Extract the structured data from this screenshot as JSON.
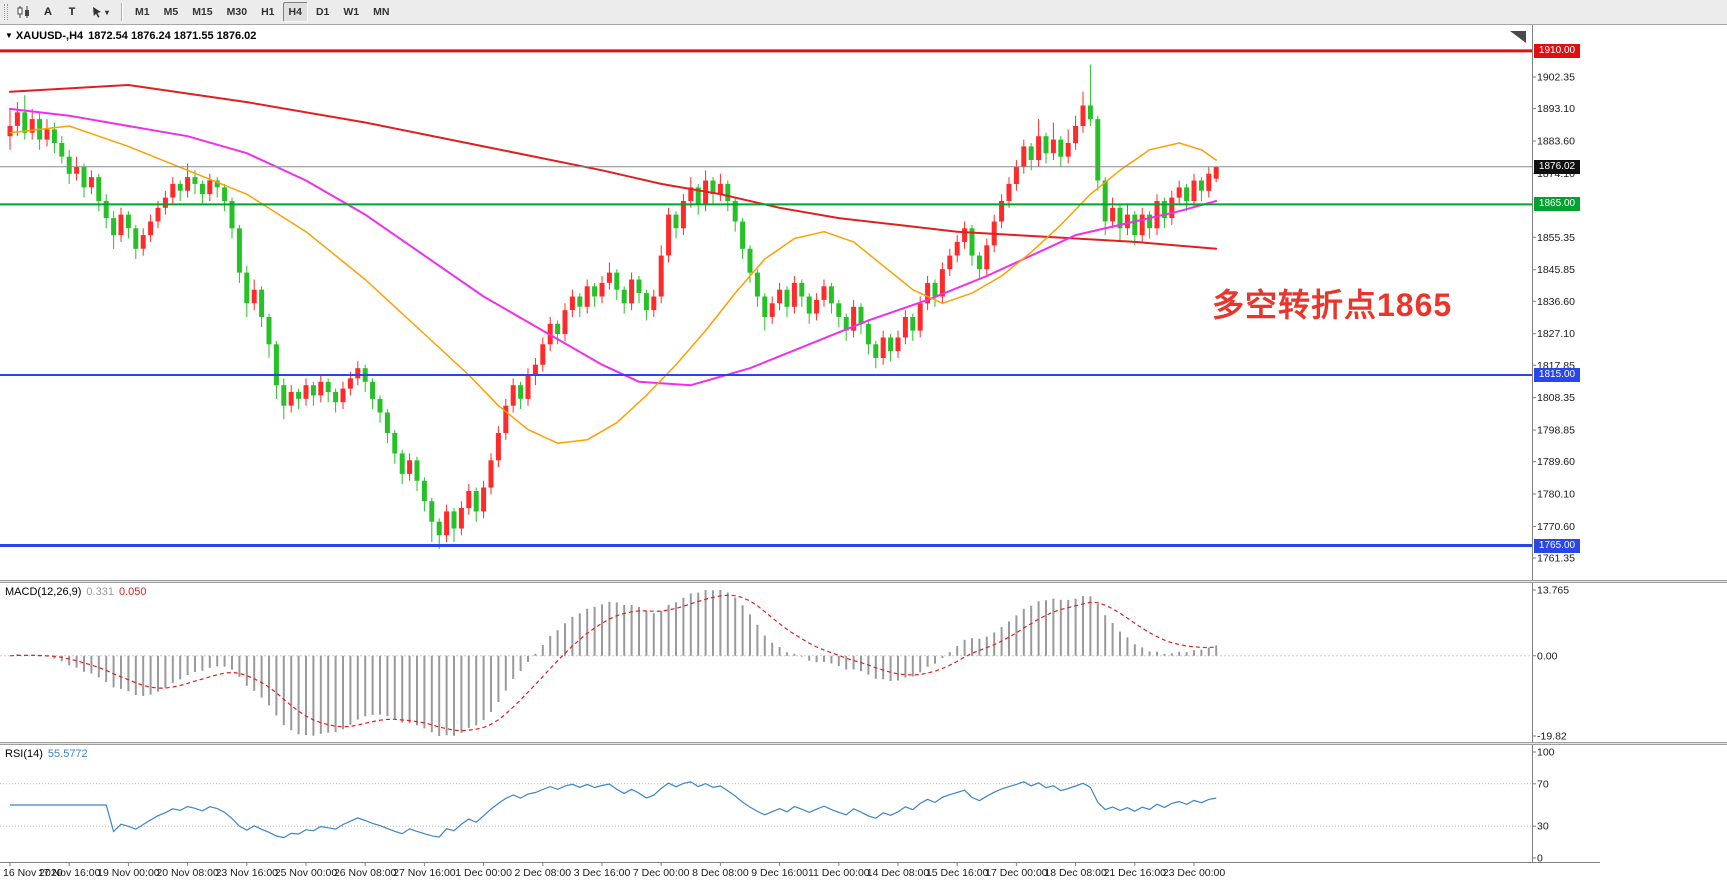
{
  "toolbar": {
    "tool_a": "A",
    "tool_t": "T",
    "timeframes": [
      "M1",
      "M5",
      "M15",
      "M30",
      "H1",
      "H4",
      "D1",
      "W1",
      "MN"
    ],
    "active_timeframe": "H4"
  },
  "chart": {
    "title_symbol": "XAUUSD-,H4",
    "title_ohlc": "1872.54 1876.24 1871.55 1876.02",
    "annotation": "多空转折点1865",
    "annotation_color": "#e8362c"
  },
  "macd": {
    "name": "MACD(12,26,9)",
    "value_main": "0.331",
    "value_signal": "0.050",
    "axis": [
      "13.765",
      "0.00",
      "-19.82"
    ],
    "hist_color": "#9a9a9a",
    "signal_color": "#e02020"
  },
  "rsi": {
    "name": "RSI(14)",
    "value": "55.5772",
    "axis": [
      "100",
      "70",
      "30",
      "0"
    ],
    "color": "#3d85c6"
  },
  "chart_data": {
    "type": "candlestick",
    "symbol": "XAUUSD",
    "period": "H4",
    "bull_color": "#ff2a2a",
    "bear_color": "#26c126",
    "price_ticks": [
      "1902.35",
      "1893.10",
      "1883.60",
      "1874.10",
      "1855.35",
      "1845.85",
      "1836.60",
      "1827.10",
      "1817.85",
      "1808.35",
      "1798.85",
      "1789.60",
      "1780.10",
      "1770.60",
      "1761.35"
    ],
    "current_price": {
      "label": "1876.02",
      "value": 1876.02,
      "box_color": "#101010"
    },
    "hlines": [
      {
        "value": 1910.0,
        "label": "1910.00",
        "color": "#e10f0f",
        "width": 3
      },
      {
        "value": 1865.0,
        "label": "1865.00",
        "color": "#00a32e",
        "width": 2
      },
      {
        "value": 1815.0,
        "label": "1815.00",
        "color": "#2946e8",
        "width": 2
      },
      {
        "value": 1765.0,
        "label": "1765.00",
        "color": "#2946e8",
        "width": 3
      }
    ],
    "ma_lines": [
      {
        "name": "ma-slow-red",
        "color": "#e02020",
        "width": 2,
        "points": [
          [
            0,
            1898
          ],
          [
            16,
            1900
          ],
          [
            32,
            1895
          ],
          [
            48,
            1889
          ],
          [
            64,
            1882
          ],
          [
            80,
            1875
          ],
          [
            88,
            1871
          ],
          [
            96,
            1868
          ],
          [
            104,
            1864
          ],
          [
            112,
            1861
          ],
          [
            120,
            1859
          ],
          [
            128,
            1857
          ],
          [
            136,
            1856
          ],
          [
            144,
            1855
          ],
          [
            152,
            1854
          ],
          [
            163,
            1852
          ]
        ]
      },
      {
        "name": "ma-mid-magenta",
        "color": "#ee30ee",
        "width": 2,
        "points": [
          [
            0,
            1893
          ],
          [
            8,
            1891
          ],
          [
            16,
            1888
          ],
          [
            24,
            1885
          ],
          [
            32,
            1880
          ],
          [
            40,
            1872
          ],
          [
            48,
            1862
          ],
          [
            56,
            1850
          ],
          [
            64,
            1838
          ],
          [
            72,
            1828
          ],
          [
            80,
            1818
          ],
          [
            85,
            1813
          ],
          [
            92,
            1812
          ],
          [
            100,
            1817
          ],
          [
            108,
            1824
          ],
          [
            116,
            1831
          ],
          [
            124,
            1837
          ],
          [
            132,
            1844
          ],
          [
            140,
            1852
          ],
          [
            144,
            1856
          ],
          [
            152,
            1860
          ],
          [
            158,
            1863
          ],
          [
            163,
            1866
          ]
        ]
      },
      {
        "name": "ma-fast-orange",
        "color": "#ffa000",
        "width": 1.5,
        "points": [
          [
            0,
            1886
          ],
          [
            8,
            1888
          ],
          [
            16,
            1882
          ],
          [
            24,
            1875
          ],
          [
            32,
            1868
          ],
          [
            40,
            1857
          ],
          [
            48,
            1843
          ],
          [
            56,
            1827
          ],
          [
            62,
            1815
          ],
          [
            66,
            1806
          ],
          [
            70,
            1799
          ],
          [
            74,
            1795
          ],
          [
            78,
            1796
          ],
          [
            82,
            1801
          ],
          [
            86,
            1809
          ],
          [
            90,
            1818
          ],
          [
            94,
            1828
          ],
          [
            98,
            1839
          ],
          [
            102,
            1849
          ],
          [
            106,
            1855
          ],
          [
            110,
            1857
          ],
          [
            114,
            1854
          ],
          [
            118,
            1847
          ],
          [
            122,
            1840
          ],
          [
            126,
            1836
          ],
          [
            130,
            1839
          ],
          [
            134,
            1844
          ],
          [
            138,
            1851
          ],
          [
            142,
            1859
          ],
          [
            146,
            1868
          ],
          [
            150,
            1875
          ],
          [
            154,
            1881
          ],
          [
            158,
            1883
          ],
          [
            161,
            1881
          ],
          [
            163,
            1878
          ]
        ]
      }
    ],
    "macd_params": {
      "fast": 12,
      "slow": 26,
      "signal": 9
    },
    "rsi_params": {
      "period": 14,
      "levels": [
        70,
        30
      ]
    },
    "time_labels": [
      "16 Nov 2020",
      "17 Nov 16:00",
      "19 Nov 00:00",
      "20 Nov 08:00",
      "23 Nov 16:00",
      "25 Nov 00:00",
      "26 Nov 08:00",
      "27 Nov 16:00",
      "1 Dec 00:00",
      "2 Dec 08:00",
      "3 Dec 16:00",
      "7 Dec 00:00",
      "8 Dec 08:00",
      "9 Dec 16:00",
      "11 Dec 00:00",
      "14 Dec 08:00",
      "15 Dec 16:00",
      "17 Dec 00:00",
      "18 Dec 08:00",
      "21 Dec 16:00",
      "23 Dec 00:00"
    ],
    "candles": [
      [
        1885,
        1893,
        1881,
        1888
      ],
      [
        1888,
        1895,
        1885,
        1892
      ],
      [
        1892,
        1897,
        1884,
        1886
      ],
      [
        1886,
        1893,
        1884,
        1890
      ],
      [
        1890,
        1892,
        1881,
        1884
      ],
      [
        1884,
        1890,
        1882,
        1887
      ],
      [
        1887,
        1889,
        1880,
        1883
      ],
      [
        1883,
        1885,
        1877,
        1879
      ],
      [
        1879,
        1881,
        1871,
        1874
      ],
      [
        1874,
        1879,
        1872,
        1876
      ],
      [
        1876,
        1877,
        1867,
        1870
      ],
      [
        1870,
        1875,
        1868,
        1873
      ],
      [
        1873,
        1874,
        1863,
        1866
      ],
      [
        1866,
        1868,
        1858,
        1861
      ],
      [
        1861,
        1863,
        1852,
        1856
      ],
      [
        1856,
        1864,
        1854,
        1862
      ],
      [
        1862,
        1863,
        1855,
        1858
      ],
      [
        1858,
        1859,
        1849,
        1852
      ],
      [
        1852,
        1858,
        1850,
        1856
      ],
      [
        1856,
        1862,
        1854,
        1860
      ],
      [
        1860,
        1866,
        1858,
        1864
      ],
      [
        1864,
        1869,
        1862,
        1867
      ],
      [
        1867,
        1873,
        1865,
        1871
      ],
      [
        1871,
        1872,
        1866,
        1869
      ],
      [
        1869,
        1877,
        1867,
        1873
      ],
      [
        1873,
        1875,
        1868,
        1871
      ],
      [
        1871,
        1872,
        1865,
        1868
      ],
      [
        1868,
        1874,
        1866,
        1872
      ],
      [
        1872,
        1873,
        1867,
        1870
      ],
      [
        1870,
        1871,
        1863,
        1866
      ],
      [
        1866,
        1867,
        1855,
        1858
      ],
      [
        1858,
        1859,
        1842,
        1845
      ],
      [
        1845,
        1847,
        1832,
        1836
      ],
      [
        1836,
        1843,
        1834,
        1840
      ],
      [
        1840,
        1841,
        1829,
        1832
      ],
      [
        1832,
        1833,
        1820,
        1824
      ],
      [
        1824,
        1825,
        1808,
        1812
      ],
      [
        1812,
        1814,
        1802,
        1806
      ],
      [
        1806,
        1812,
        1804,
        1810
      ],
      [
        1810,
        1811,
        1805,
        1808
      ],
      [
        1808,
        1814,
        1806,
        1812
      ],
      [
        1812,
        1813,
        1806,
        1809
      ],
      [
        1809,
        1815,
        1807,
        1813
      ],
      [
        1813,
        1814,
        1807,
        1810
      ],
      [
        1810,
        1811,
        1804,
        1807
      ],
      [
        1807,
        1813,
        1805,
        1811
      ],
      [
        1811,
        1816,
        1809,
        1814
      ],
      [
        1814,
        1819,
        1812,
        1817
      ],
      [
        1817,
        1818,
        1810,
        1813
      ],
      [
        1813,
        1814,
        1805,
        1808
      ],
      [
        1808,
        1809,
        1801,
        1804
      ],
      [
        1804,
        1805,
        1795,
        1798
      ],
      [
        1798,
        1799,
        1789,
        1792
      ],
      [
        1792,
        1793,
        1783,
        1786
      ],
      [
        1786,
        1792,
        1784,
        1790
      ],
      [
        1790,
        1791,
        1781,
        1784
      ],
      [
        1784,
        1785,
        1775,
        1778
      ],
      [
        1778,
        1779,
        1766,
        1772
      ],
      [
        1772,
        1773,
        1764,
        1768
      ],
      [
        1768,
        1777,
        1766,
        1775
      ],
      [
        1775,
        1776,
        1766,
        1770
      ],
      [
        1770,
        1778,
        1768,
        1776
      ],
      [
        1776,
        1783,
        1774,
        1781
      ],
      [
        1781,
        1782,
        1772,
        1775
      ],
      [
        1775,
        1784,
        1773,
        1782
      ],
      [
        1782,
        1792,
        1780,
        1790
      ],
      [
        1790,
        1800,
        1788,
        1798
      ],
      [
        1798,
        1808,
        1796,
        1806
      ],
      [
        1806,
        1814,
        1804,
        1812
      ],
      [
        1812,
        1813,
        1805,
        1808
      ],
      [
        1808,
        1817,
        1806,
        1815
      ],
      [
        1815,
        1820,
        1812,
        1818
      ],
      [
        1818,
        1826,
        1816,
        1824
      ],
      [
        1824,
        1832,
        1822,
        1830
      ],
      [
        1830,
        1831,
        1824,
        1827
      ],
      [
        1827,
        1836,
        1825,
        1834
      ],
      [
        1834,
        1840,
        1832,
        1838
      ],
      [
        1838,
        1839,
        1832,
        1835
      ],
      [
        1835,
        1843,
        1833,
        1841
      ],
      [
        1841,
        1842,
        1835,
        1838
      ],
      [
        1838,
        1844,
        1836,
        1842
      ],
      [
        1842,
        1848,
        1840,
        1845
      ],
      [
        1845,
        1846,
        1837,
        1840
      ],
      [
        1840,
        1841,
        1833,
        1836
      ],
      [
        1836,
        1845,
        1834,
        1843
      ],
      [
        1843,
        1844,
        1836,
        1839
      ],
      [
        1839,
        1840,
        1831,
        1834
      ],
      [
        1834,
        1840,
        1832,
        1838
      ],
      [
        1838,
        1853,
        1836,
        1850
      ],
      [
        1850,
        1864,
        1848,
        1862
      ],
      [
        1862,
        1863,
        1855,
        1858
      ],
      [
        1858,
        1868,
        1856,
        1866
      ],
      [
        1866,
        1873,
        1864,
        1870
      ],
      [
        1870,
        1871,
        1862,
        1865
      ],
      [
        1865,
        1875,
        1863,
        1872
      ],
      [
        1872,
        1873,
        1865,
        1868
      ],
      [
        1868,
        1874,
        1866,
        1871
      ],
      [
        1871,
        1872,
        1863,
        1866
      ],
      [
        1866,
        1867,
        1857,
        1860
      ],
      [
        1860,
        1861,
        1849,
        1852
      ],
      [
        1852,
        1853,
        1842,
        1845
      ],
      [
        1845,
        1846,
        1835,
        1838
      ],
      [
        1838,
        1839,
        1828,
        1832
      ],
      [
        1832,
        1838,
        1830,
        1836
      ],
      [
        1836,
        1842,
        1834,
        1840
      ],
      [
        1840,
        1841,
        1832,
        1835
      ],
      [
        1835,
        1844,
        1833,
        1842
      ],
      [
        1842,
        1843,
        1835,
        1838
      ],
      [
        1838,
        1839,
        1830,
        1833
      ],
      [
        1833,
        1839,
        1831,
        1837
      ],
      [
        1837,
        1843,
        1835,
        1841
      ],
      [
        1841,
        1842,
        1833,
        1836
      ],
      [
        1836,
        1837,
        1829,
        1832
      ],
      [
        1832,
        1833,
        1825,
        1828
      ],
      [
        1828,
        1837,
        1826,
        1835
      ],
      [
        1835,
        1836,
        1827,
        1830
      ],
      [
        1830,
        1831,
        1821,
        1824
      ],
      [
        1824,
        1825,
        1817,
        1820
      ],
      [
        1820,
        1828,
        1818,
        1826
      ],
      [
        1826,
        1827,
        1819,
        1822
      ],
      [
        1822,
        1828,
        1820,
        1826
      ],
      [
        1826,
        1834,
        1824,
        1832
      ],
      [
        1832,
        1833,
        1825,
        1828
      ],
      [
        1828,
        1838,
        1826,
        1836
      ],
      [
        1836,
        1844,
        1834,
        1842
      ],
      [
        1842,
        1843,
        1835,
        1838
      ],
      [
        1838,
        1848,
        1836,
        1846
      ],
      [
        1846,
        1852,
        1844,
        1850
      ],
      [
        1850,
        1856,
        1848,
        1854
      ],
      [
        1854,
        1860,
        1852,
        1858
      ],
      [
        1858,
        1859,
        1847,
        1850
      ],
      [
        1850,
        1851,
        1843,
        1846
      ],
      [
        1846,
        1855,
        1844,
        1853
      ],
      [
        1853,
        1862,
        1851,
        1860
      ],
      [
        1860,
        1868,
        1858,
        1866
      ],
      [
        1866,
        1873,
        1864,
        1871
      ],
      [
        1871,
        1878,
        1869,
        1876
      ],
      [
        1876,
        1884,
        1874,
        1882
      ],
      [
        1882,
        1883,
        1875,
        1878
      ],
      [
        1878,
        1890,
        1876,
        1885
      ],
      [
        1885,
        1886,
        1877,
        1880
      ],
      [
        1880,
        1889,
        1878,
        1884
      ],
      [
        1884,
        1885,
        1876,
        1879
      ],
      [
        1879,
        1887,
        1877,
        1883
      ],
      [
        1883,
        1891,
        1881,
        1888
      ],
      [
        1888,
        1898,
        1886,
        1894
      ],
      [
        1894,
        1906,
        1888,
        1890
      ],
      [
        1890,
        1891,
        1869,
        1872
      ],
      [
        1872,
        1873,
        1856,
        1860
      ],
      [
        1860,
        1867,
        1858,
        1864
      ],
      [
        1864,
        1865,
        1854,
        1858
      ],
      [
        1858,
        1865,
        1856,
        1862
      ],
      [
        1862,
        1863,
        1853,
        1856
      ],
      [
        1856,
        1864,
        1854,
        1862
      ],
      [
        1862,
        1863,
        1855,
        1858
      ],
      [
        1858,
        1868,
        1856,
        1866
      ],
      [
        1866,
        1867,
        1858,
        1861
      ],
      [
        1861,
        1869,
        1859,
        1867
      ],
      [
        1867,
        1872,
        1865,
        1870
      ],
      [
        1870,
        1871,
        1863,
        1866
      ],
      [
        1866,
        1874,
        1864,
        1872
      ],
      [
        1872,
        1873,
        1866,
        1869
      ],
      [
        1869,
        1876,
        1867,
        1874
      ],
      [
        1872.54,
        1876.24,
        1871.55,
        1876.02
      ]
    ]
  }
}
